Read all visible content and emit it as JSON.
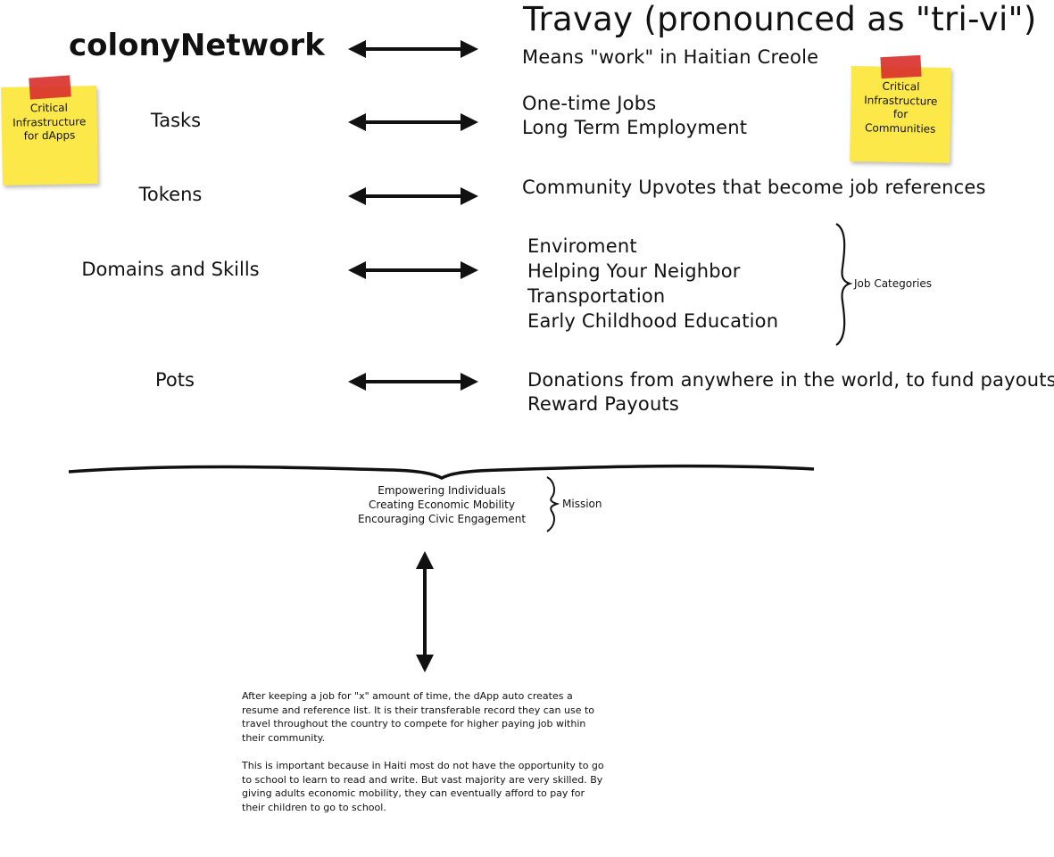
{
  "title": {
    "main": "Travay (pronounced as \"tri-vi\")",
    "meaning": "Means \"work\" in Haitian Creole"
  },
  "rows": [
    {
      "left": "colonyNetwork",
      "right": []
    },
    {
      "left": "Tasks",
      "right": [
        "One-time Jobs",
        "Long Term Employment"
      ]
    },
    {
      "left": "Tokens",
      "right": [
        "Community Upvotes that become job references"
      ]
    },
    {
      "left": "Domains and Skills",
      "right": [
        "Enviroment",
        "Helping Your Neighbor",
        "Transportation",
        "Early Childhood Education"
      ]
    },
    {
      "left": "Pots",
      "right": [
        "Donations from anywhere in the world, to fund payouts",
        "Reward Payouts"
      ]
    }
  ],
  "job_categories_label": "Job Categories",
  "sticky_left": [
    "Critical",
    "Infrastructure",
    "for dApps"
  ],
  "sticky_right": [
    "Critical",
    "Infrastructure",
    "for",
    "Communities"
  ],
  "mission": {
    "items": [
      "Empowering Individuals",
      "Creating Economic Mobility",
      "Encouraging Civic Engagement"
    ],
    "label": "Mission"
  },
  "description": {
    "p1": "After keeping a job for \"x\" amount of time, the dApp auto creates a resume and reference list. It is their transferable record they can use to travel throughout the country to compete for higher paying job within their community.",
    "p2": "This is important because in Haiti most do not have the opportunity to go to school to learn to read and write. But vast majority are very skilled. By giving adults economic mobility, they can eventually afford to pay for their children to go to school."
  },
  "colors": {
    "sticky": "#fde84a",
    "tape": "#d9322e",
    "ink": "#111111"
  }
}
